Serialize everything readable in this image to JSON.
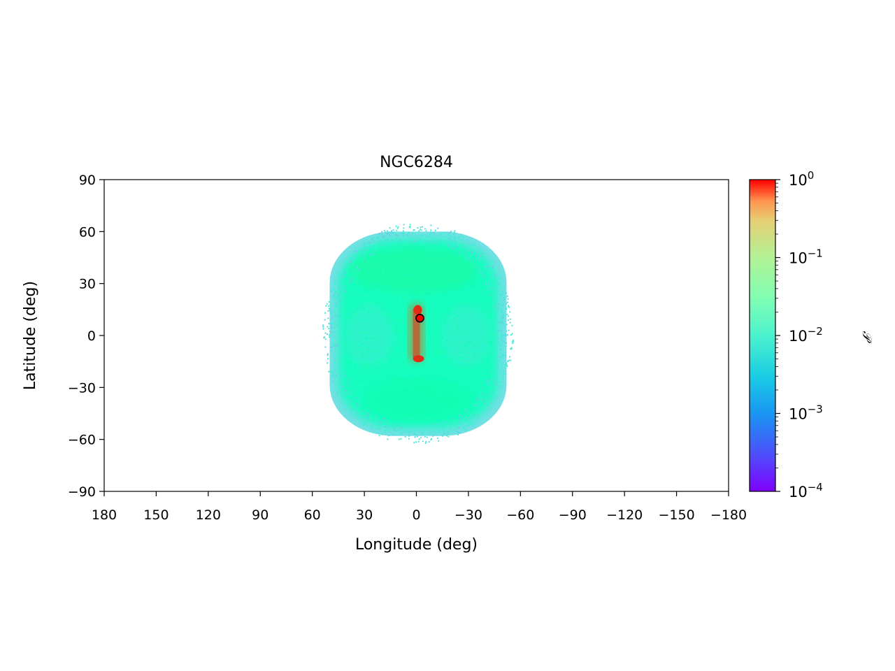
{
  "chart_data": {
    "type": "scatter",
    "title": "NGC6284",
    "xlabel": "Longitude (deg)",
    "ylabel": "Latitude (deg)",
    "xlim": [
      180,
      -180
    ],
    "ylim": [
      -90,
      90
    ],
    "xticks": [
      180,
      150,
      120,
      90,
      60,
      30,
      0,
      -30,
      -60,
      -90,
      -120,
      -150,
      -180
    ],
    "xtick_labels": [
      "180",
      "150",
      "120",
      "90",
      "60",
      "30",
      "0",
      "−30",
      "−60",
      "−90",
      "−120",
      "−150",
      "−180"
    ],
    "yticks": [
      90,
      60,
      30,
      0,
      -30,
      -60,
      -90
    ],
    "ytick_labels": [
      "90",
      "60",
      "30",
      "0",
      "−30",
      "−60",
      "−90"
    ],
    "grid": false,
    "colormap": "rainbow",
    "colorbar": {
      "label": "𝒫",
      "scale": "log",
      "range": [
        0.0001,
        1
      ],
      "ticks": [
        0.0001,
        0.001,
        0.01,
        0.1,
        1
      ],
      "tick_bases": [
        "10",
        "10",
        "10",
        "10",
        "10"
      ],
      "tick_exponents": [
        "−4",
        "−3",
        "−2",
        "−1",
        "0"
      ]
    },
    "cloud": {
      "center": [
        0,
        2
      ],
      "lon_range": [
        50,
        -52
      ],
      "lat_range": [
        -58,
        60
      ],
      "typical_value": 0.01,
      "edge_value": 0.002
    },
    "dense_stream": {
      "lon": 0,
      "lat_range": [
        -15,
        18
      ],
      "values": [
        0.15,
        0.4,
        0.6
      ]
    },
    "cluster_marker": {
      "lon": -2,
      "lat": 10,
      "value": 1.0
    }
  }
}
